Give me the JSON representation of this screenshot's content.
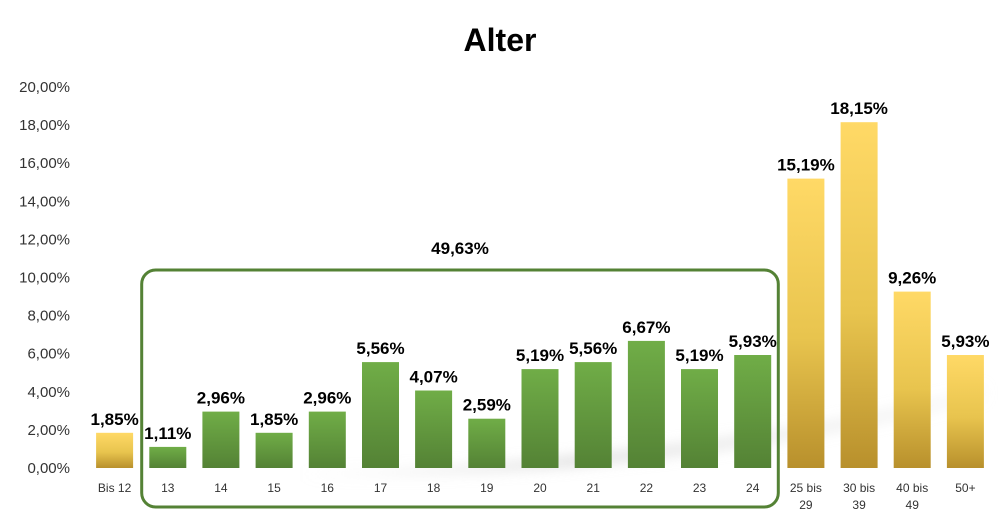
{
  "chart_data": {
    "type": "bar",
    "title": "Alter",
    "xlabel": "",
    "ylabel": "",
    "ylim": [
      0,
      20
    ],
    "y_ticks": [
      "0,00%",
      "2,00%",
      "4,00%",
      "6,00%",
      "8,00%",
      "10,00%",
      "12,00%",
      "14,00%",
      "16,00%",
      "18,00%",
      "20,00%"
    ],
    "categories": [
      [
        "Bis 12"
      ],
      [
        "13"
      ],
      [
        "14"
      ],
      [
        "15"
      ],
      [
        "16"
      ],
      [
        "17"
      ],
      [
        "18"
      ],
      [
        "19"
      ],
      [
        "20"
      ],
      [
        "21"
      ],
      [
        "22"
      ],
      [
        "23"
      ],
      [
        "24"
      ],
      [
        "25 bis",
        "29"
      ],
      [
        "30 bis",
        "39"
      ],
      [
        "40 bis",
        "49"
      ],
      [
        "50+"
      ]
    ],
    "values": [
      1.85,
      1.11,
      2.96,
      1.85,
      2.96,
      5.56,
      4.07,
      2.59,
      5.19,
      5.56,
      6.67,
      5.19,
      5.93,
      15.19,
      18.15,
      9.26,
      5.93
    ],
    "value_labels": [
      "1,85%",
      "1,11%",
      "2,96%",
      "1,85%",
      "2,96%",
      "5,56%",
      "4,07%",
      "2,59%",
      "5,19%",
      "5,56%",
      "6,67%",
      "5,19%",
      "5,93%",
      "15,19%",
      "18,15%",
      "9,26%",
      "5,93%"
    ],
    "bar_groups": [
      "gold",
      "green",
      "green",
      "green",
      "green",
      "green",
      "green",
      "green",
      "green",
      "green",
      "green",
      "green",
      "green",
      "gold",
      "gold",
      "gold",
      "gold"
    ],
    "highlight_group": {
      "first_index": 1,
      "last_index": 12,
      "label": "49,63%"
    },
    "grid": false,
    "legend": "none",
    "colors": {
      "green_top": "#70ad47",
      "green_bottom": "#548235",
      "gold_top": "#ffd966",
      "gold_bottom": "#b8902c",
      "group_border": "#548235"
    }
  }
}
